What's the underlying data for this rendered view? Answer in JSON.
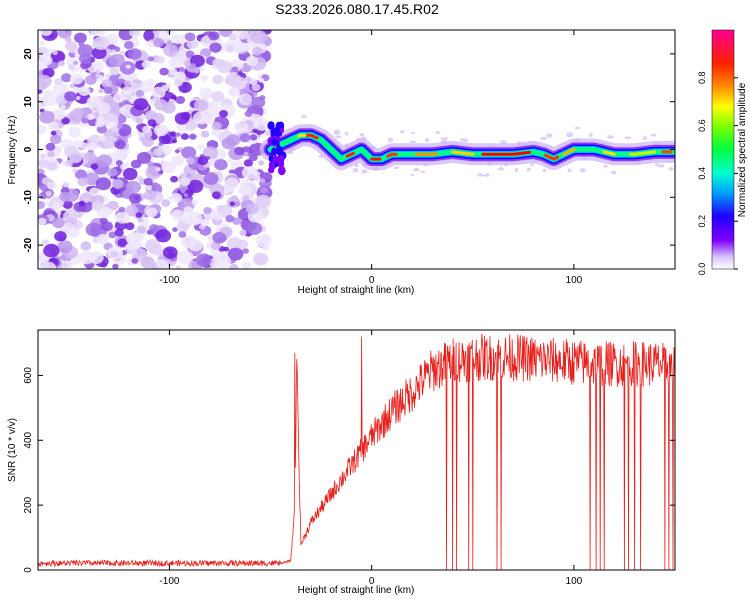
{
  "title": "S233.2026.080.17.45.R02",
  "chart_data": [
    {
      "type": "heatmap",
      "xlabel": "Height of straight line (km)",
      "ylabel": "Frequency (Hz)",
      "xlim": [
        -165,
        150
      ],
      "ylim": [
        -25,
        25
      ],
      "xticks": [
        -100,
        0,
        100
      ],
      "yticks": [
        -20,
        -10,
        0,
        10,
        20
      ],
      "colorbar": {
        "label": "Normalized spectral amplitude",
        "range": [
          0,
          1
        ],
        "ticks": [
          0.0,
          0.2,
          0.4,
          0.6,
          0.8
        ],
        "tick_labels": [
          "0.0",
          "0.2",
          "0.4",
          "0.6",
          "0.8"
        ],
        "colors": [
          "#ffffff",
          "#b98cf0",
          "#8000ff",
          "#0000ff",
          "#00c8ff",
          "#00ff80",
          "#c8ff00",
          "#ffff00",
          "#ff8000",
          "#ff0000",
          "#ff0090"
        ]
      },
      "noise_region_x": [
        -165,
        -52
      ],
      "signal_ridge": {
        "x": [
          -50,
          -45,
          -40,
          -35,
          -30,
          -25,
          -20,
          -15,
          -10,
          -5,
          0,
          5,
          10,
          20,
          30,
          40,
          50,
          60,
          70,
          80,
          85,
          90,
          95,
          100,
          110,
          120,
          130,
          140,
          150
        ],
        "frequency": [
          0,
          1,
          2,
          3,
          3,
          2,
          0,
          -2,
          -1,
          0,
          -2,
          -2,
          -1,
          -1,
          -1,
          -0.5,
          -1,
          -1,
          -1,
          -0.5,
          -1,
          -2,
          -1,
          0,
          0,
          -1,
          -1,
          -0.5,
          -0.5
        ]
      }
    },
    {
      "type": "line",
      "xlabel": "Height of straight line (km)",
      "ylabel": "SNR (10 * v/v)",
      "xlim": [
        -165,
        150
      ],
      "ylim": [
        0,
        740
      ],
      "xticks": [
        -100,
        0,
        100
      ],
      "yticks": [
        0,
        200,
        400,
        600
      ],
      "series_color": "#e8201c",
      "envelope": {
        "x": [
          -165,
          -45,
          -40,
          -38,
          -37,
          -35,
          -30,
          -20,
          -10,
          0,
          10,
          20,
          30,
          40,
          50,
          60,
          70,
          80,
          90,
          100,
          110,
          120,
          130,
          140,
          150
        ],
        "snr": [
          20,
          20,
          30,
          200,
          640,
          80,
          150,
          240,
          330,
          420,
          500,
          560,
          630,
          660,
          670,
          670,
          670,
          665,
          660,
          655,
          650,
          650,
          650,
          650,
          640
        ]
      },
      "spikes_high_x": [
        -38,
        -37,
        -5
      ],
      "spikes_high_y": [
        670,
        650,
        720
      ],
      "dropouts_x": [
        37,
        40,
        42,
        48,
        50,
        62,
        64,
        108,
        111,
        113,
        115,
        125,
        127,
        130,
        133,
        145,
        147,
        149
      ]
    }
  ]
}
